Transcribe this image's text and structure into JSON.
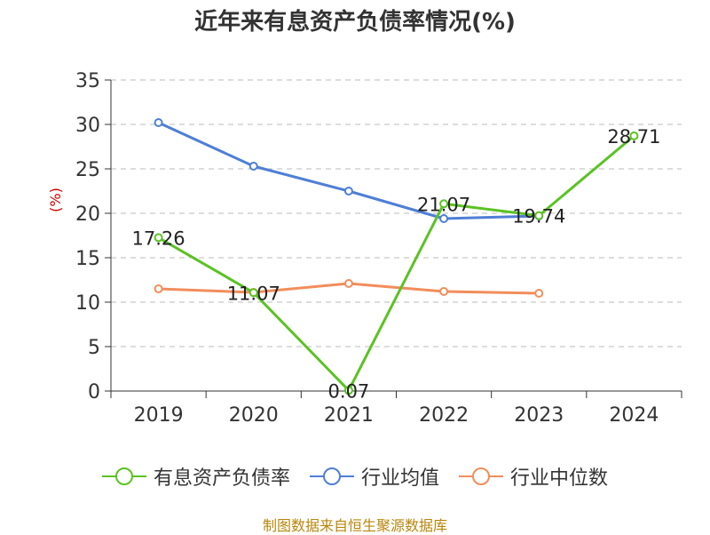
{
  "title": "近年来有息资产负债率情况(%)",
  "source_note": "制图数据来自恒生聚源数据库",
  "chart_data": {
    "type": "line",
    "title": "近年来有息资产负债率情况(%)",
    "ylabel": "(%)",
    "xlabel": "",
    "ylim": [
      0,
      35
    ],
    "yticks": [
      0,
      5,
      10,
      15,
      20,
      25,
      30,
      35
    ],
    "categories": [
      "2019",
      "2020",
      "2021",
      "2022",
      "2023",
      "2024"
    ],
    "grid": "horizontal dashed",
    "legend_position": "bottom",
    "series": [
      {
        "name": "有息资产负债率",
        "color": "#5bc224",
        "values": [
          17.26,
          11.07,
          0.07,
          21.07,
          19.74,
          28.71
        ],
        "labels": true
      },
      {
        "name": "行业均值",
        "color": "#4f7fd6",
        "values": [
          30.2,
          25.3,
          22.5,
          19.4,
          19.7,
          null
        ],
        "labels": false
      },
      {
        "name": "行业中位数",
        "color": "#f28d5b",
        "values": [
          11.5,
          11.1,
          12.1,
          11.2,
          11.0,
          null
        ],
        "labels": false
      }
    ]
  }
}
